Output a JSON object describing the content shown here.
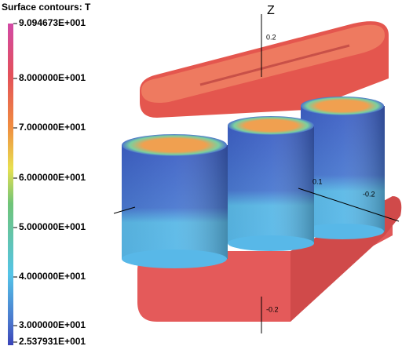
{
  "legend": {
    "title": "Surface contours: T",
    "labels": [
      "9.094673E+001",
      "8.000000E+001",
      "7.000000E+001",
      "6.000000E+001",
      "5.000000E+001",
      "4.000000E+001",
      "3.000000E+001",
      "2.537931E+001"
    ]
  },
  "axes": {
    "z_label": "Z",
    "z_top_tick": "0.2",
    "z_bottom_tick": "-0.2",
    "y_tick_1": "0.1",
    "y_tick_2": "-0.2"
  }
}
